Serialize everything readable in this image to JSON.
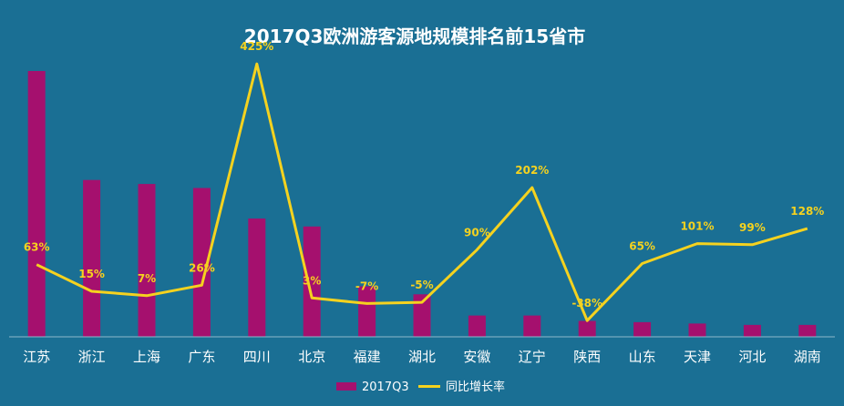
{
  "chart_data": {
    "type": "bar",
    "title": "2017Q3欧洲游客源地规模排名前15省市",
    "categories": [
      "江苏",
      "浙江",
      "上海",
      "广东",
      "四川",
      "北京",
      "福建",
      "湖北",
      "安徽",
      "辽宁",
      "陕西",
      "山东",
      "天津",
      "河北",
      "湖南"
    ],
    "series": [
      {
        "name": "2017Q3",
        "type": "bar",
        "axis": "left",
        "color": "#a5106e",
        "values": [
          100,
          59,
          57.5,
          56,
          44.5,
          41.5,
          19,
          16,
          8,
          8,
          6,
          5.5,
          5,
          4.5,
          4.5
        ]
      },
      {
        "name": "同比增长率",
        "type": "line",
        "axis": "right",
        "color": "#f5d21f",
        "values": [
          63,
          15,
          7,
          26,
          425,
          3,
          -7,
          -5,
          90,
          202,
          -38,
          65,
          101,
          99,
          128
        ],
        "labels": [
          "63%",
          "15%",
          "7%",
          "26%",
          "425%",
          "3%",
          "-7%",
          "-5%",
          "90%",
          "202%",
          "-38%",
          "65%",
          "101%",
          "99%",
          "128%"
        ]
      }
    ],
    "ylim_left": [
      0,
      100
    ],
    "ylim_right": [
      -100,
      450
    ],
    "legend_position": "bottom-center",
    "grid": false
  }
}
